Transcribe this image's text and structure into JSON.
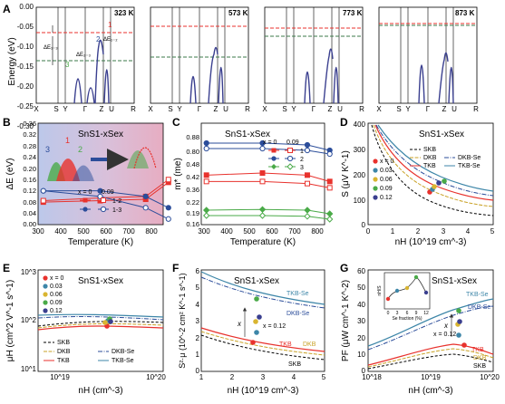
{
  "panel_letters": [
    "A",
    "B",
    "C",
    "D",
    "E",
    "F",
    "G"
  ],
  "bands": {
    "ylabel": "Energy (eV)",
    "yticks": [
      "0.00",
      "-0.05",
      "-0.10",
      "-0.15",
      "-0.20",
      "-0.25",
      "-0.30"
    ],
    "kpath": [
      "X",
      "S",
      "Y",
      "Γ",
      "Z",
      "U",
      "R"
    ],
    "temps": [
      "323 K",
      "573 K",
      "773 K",
      "873 K"
    ],
    "ann": {
      "de13": "ΔE₁₋₃",
      "de23": "ΔE₂₋₃",
      "de12": "ΔE₁₋₂",
      "n1": "1",
      "n2": "2",
      "n3": "3"
    }
  },
  "colors": {
    "red": "#e8322d",
    "blue": "#2b4d9a",
    "green": "#4aaa48",
    "teal": "#3d86a8",
    "navy": "#2f3680",
    "band": "#3a3f8f"
  },
  "chart_data": [
    {
      "panel": "B",
      "type": "line",
      "title": "SnS1-xSex",
      "xlabel": "Temperature (K)",
      "ylabel": "ΔE (eV)",
      "xlim": [
        300,
        850
      ],
      "ylim": [
        0,
        0.36
      ],
      "xticks": [
        "300",
        "400",
        "500",
        "600",
        "700",
        "800"
      ],
      "yticks": [
        "0.00",
        "0.04",
        "0.08",
        "0.12",
        "0.16",
        "0.20",
        "0.24",
        "0.28",
        "0.32",
        "0.36"
      ],
      "legend_header": [
        "x = 0",
        "0.09"
      ],
      "legend_entries": [
        "1-2",
        "1-3"
      ],
      "inset": {
        "n1": "1",
        "n2": "2",
        "n3": "3"
      },
      "x": [
        323,
        573,
        773,
        873
      ],
      "series": [
        {
          "name": "1-2",
          "x0": [
            0.08,
            0.085,
            0.09,
            0.15
          ],
          "x009": [
            0.085,
            0.095,
            0.1,
            0.16
          ]
        },
        {
          "name": "1-3",
          "x0": [
            0.12,
            0.12,
            0.1,
            0.06
          ],
          "x009": [
            0.12,
            0.1,
            0.06,
            0.02
          ]
        }
      ]
    },
    {
      "panel": "C",
      "type": "line",
      "title": "SnS1-xSex",
      "xlabel": "Temperature (K)",
      "ylabel": "m* (me)",
      "xticks": [
        "300",
        "400",
        "500",
        "600",
        "700",
        "800"
      ],
      "yticks": [
        "0.16",
        "0.19",
        "0.22",
        "0.36",
        "0.42",
        "0.48",
        "0.80",
        "0.88"
      ],
      "legend_header": [
        "x = 0",
        "0.09"
      ],
      "legend_entries": [
        "1",
        "2",
        "3"
      ],
      "x": [
        323,
        573,
        773,
        873
      ],
      "series": [
        {
          "name": "1",
          "x0": [
            0.44,
            0.45,
            0.44,
            0.41
          ],
          "x009": [
            0.41,
            0.41,
            0.4,
            0.38
          ]
        },
        {
          "name": "2",
          "x0": [
            0.85,
            0.85,
            0.84,
            0.81
          ],
          "x009": [
            0.82,
            0.82,
            0.81,
            0.79
          ]
        },
        {
          "name": "3",
          "x0": [
            0.205,
            0.207,
            0.205,
            0.195
          ],
          "x009": [
            0.19,
            0.19,
            0.188,
            0.18
          ]
        }
      ]
    },
    {
      "panel": "D",
      "type": "line",
      "title": "SnS1-xSex",
      "xlabel": "nH (10^19 cm^-3)",
      "ylabel": "S (μV K^-1)",
      "xlim": [
        0,
        5
      ],
      "ylim": [
        0,
        400
      ],
      "xticks": [
        "0",
        "1",
        "2",
        "3",
        "4",
        "5"
      ],
      "yticks": [
        "0",
        "100",
        "200",
        "300",
        "400"
      ],
      "legend": [
        "SKB",
        "DKB",
        "TKB",
        "DKB-Se",
        "TKB-Se"
      ],
      "points_legend": [
        "x = 0",
        "0.03",
        "0.06",
        "0.09",
        "0.12"
      ],
      "points": [
        {
          "nH": 2.3,
          "S": 135
        },
        {
          "nH": 2.4,
          "S": 140
        },
        {
          "nH": 2.5,
          "S": 150
        },
        {
          "nH": 2.9,
          "S": 160
        },
        {
          "nH": 2.7,
          "S": 160
        }
      ]
    },
    {
      "panel": "E",
      "type": "scatter",
      "title": "SnS1-xSex",
      "xlabel": "nH (cm^-3)",
      "ylabel": "μH (cm^2 V^-1 s^-1)",
      "xticks": [
        "10^19",
        "10^20"
      ],
      "yticks": [
        "10^1",
        "10^2",
        "10^3"
      ],
      "legend": [
        "SKB",
        "DKB",
        "TKB",
        "DKB-Se",
        "TKB-Se"
      ],
      "points_legend": [
        "x = 0",
        "0.03",
        "0.06",
        "0.09",
        "0.12"
      ]
    },
    {
      "panel": "F",
      "type": "line",
      "title": "SnS1-xSex",
      "xlabel": "nH (10^19 cm^-3)",
      "ylabel": "S²·μ (10^-2 cm² K^-1 s^-1)",
      "xlim": [
        1,
        5
      ],
      "ylim": [
        0,
        6
      ],
      "xticks": [
        "1",
        "2",
        "3",
        "4",
        "5"
      ],
      "yticks": [
        "0",
        "1",
        "2",
        "3",
        "4",
        "5",
        "6"
      ],
      "curve_labels": [
        "TKB-Se",
        "DKB-Se",
        "TKB",
        "DKB",
        "SKB"
      ],
      "annot": "x = 0.12",
      "arrow_label": "x"
    },
    {
      "panel": "G",
      "type": "line",
      "title": "SnS1-xSex",
      "xlabel": "nH (cm^-3)",
      "ylabel": "PF (μW cm^-1 K^-2)",
      "ylim": [
        0,
        60
      ],
      "xticks": [
        "10^18",
        "10^19",
        "10^20"
      ],
      "yticks": [
        "0",
        "10",
        "20",
        "30",
        "40",
        "50",
        "60"
      ],
      "curve_labels": [
        "TKB-Se",
        "DKB-Se",
        "TKB",
        "DKB",
        "SKB"
      ],
      "annot": "x = 0.12",
      "arrow_label": "x",
      "inset": {
        "xlabel": "Se fraction (%)",
        "ylabel": "nH/S",
        "xticks": [
          "0",
          "3",
          "6",
          "9",
          "12"
        ],
        "values": [
          {
            "x": 0,
            "y": 0.45
          },
          {
            "x": 3,
            "y": 0.6
          },
          {
            "x": 6,
            "y": 0.65
          },
          {
            "x": 9,
            "y": 0.95
          },
          {
            "x": 12,
            "y": 0.55
          }
        ]
      }
    }
  ]
}
